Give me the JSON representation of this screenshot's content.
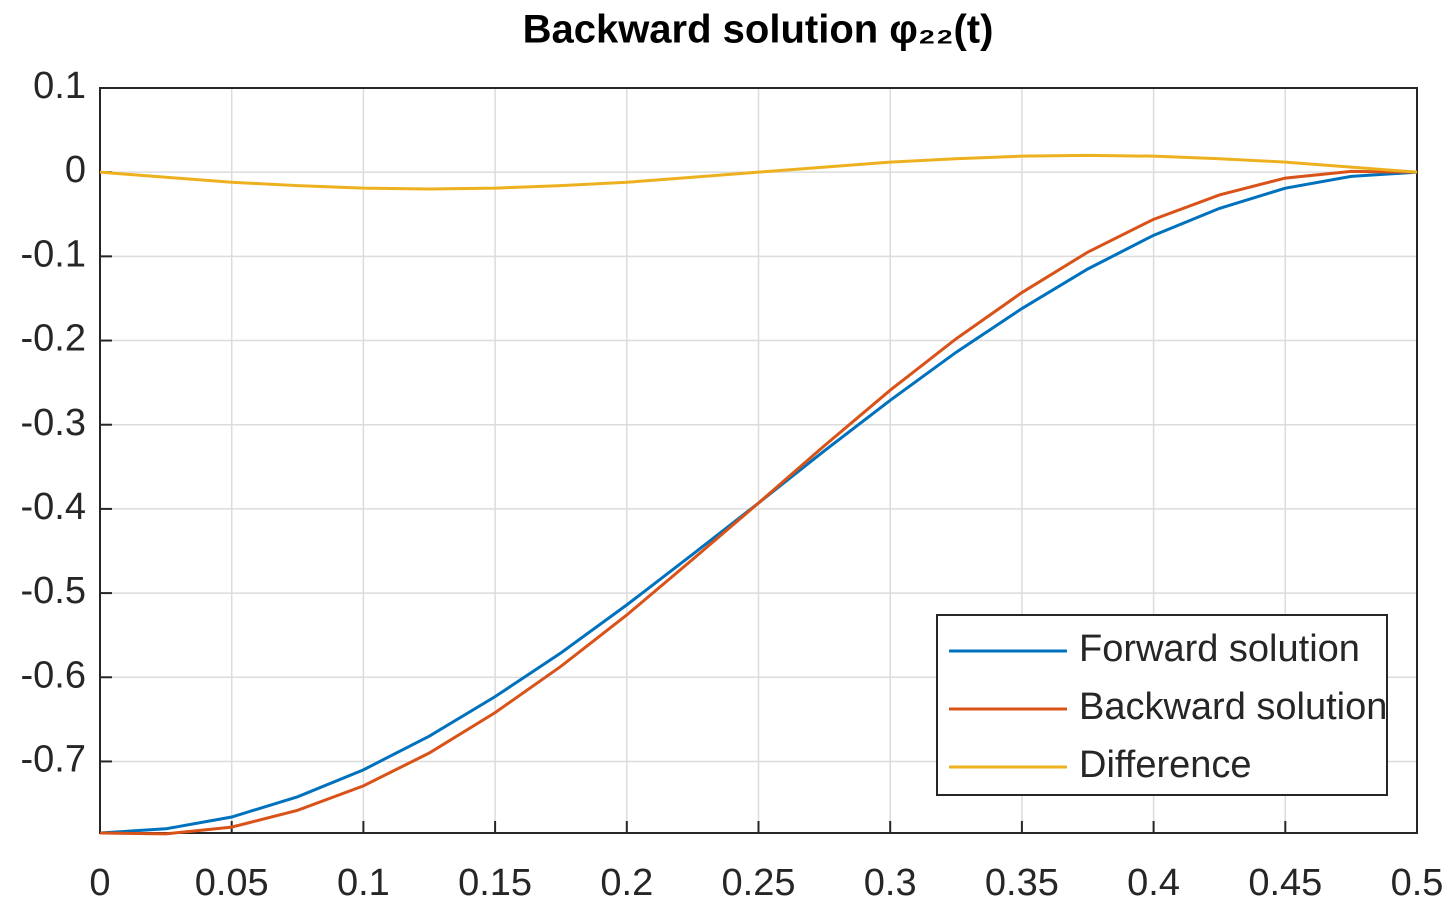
{
  "chart_data": {
    "type": "line",
    "title": "Backward solution φ₂₂(t)",
    "x": [
      0,
      0.025,
      0.05,
      0.075,
      0.1,
      0.125,
      0.15,
      0.175,
      0.2,
      0.225,
      0.25,
      0.275,
      0.3,
      0.325,
      0.35,
      0.375,
      0.4,
      0.425,
      0.45,
      0.475,
      0.5
    ],
    "series": [
      {
        "name": "Forward solution",
        "color": "#0072bd",
        "values": [
          -0.785,
          -0.78,
          -0.766,
          -0.742,
          -0.71,
          -0.67,
          -0.623,
          -0.571,
          -0.514,
          -0.454,
          -0.393,
          -0.331,
          -0.271,
          -0.214,
          -0.162,
          -0.115,
          -0.075,
          -0.043,
          -0.019,
          -0.005,
          0
        ]
      },
      {
        "name": "Backward solution",
        "color": "#d95319",
        "values": [
          -0.785,
          -0.786,
          -0.778,
          -0.758,
          -0.729,
          -0.69,
          -0.642,
          -0.587,
          -0.526,
          -0.46,
          -0.393,
          -0.325,
          -0.259,
          -0.198,
          -0.143,
          -0.095,
          -0.056,
          -0.027,
          -0.007,
          0.001,
          0
        ]
      },
      {
        "name": "Difference",
        "color": "#edb120",
        "values": [
          0,
          -0.006,
          -0.012,
          -0.016,
          -0.019,
          -0.02,
          -0.019,
          -0.016,
          -0.012,
          -0.006,
          0,
          0.006,
          0.012,
          0.016,
          0.019,
          0.02,
          0.019,
          0.016,
          0.012,
          0.006,
          0
        ]
      }
    ],
    "xlim": [
      0,
      0.5
    ],
    "xticks": [
      0,
      0.05,
      0.1,
      0.15,
      0.2,
      0.25,
      0.3,
      0.35,
      0.4,
      0.45,
      0.5
    ],
    "ylim": [
      -0.785,
      0.1
    ],
    "yticks": [
      -0.7,
      -0.6,
      -0.5,
      -0.4,
      -0.3,
      -0.2,
      -0.1,
      0,
      0.1
    ],
    "grid": true,
    "legend": "lower right"
  }
}
